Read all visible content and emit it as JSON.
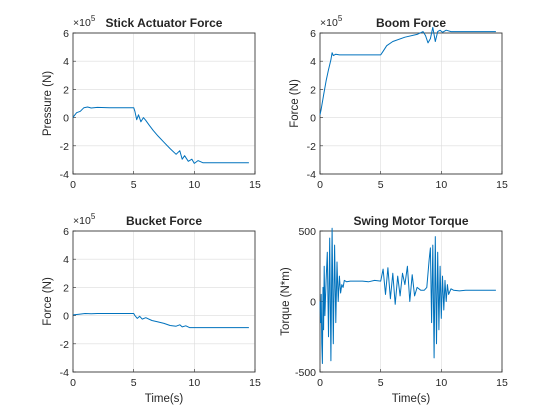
{
  "chart_data": [
    {
      "type": "line",
      "title": "Stick Actuator Force",
      "xlabel": "",
      "ylabel": "Pressure (N)",
      "exponent_base": "×10",
      "exponent_power": "5",
      "xlim": [
        0,
        15
      ],
      "ylim": [
        -4,
        6
      ],
      "xticks": [
        "0",
        "5",
        "10",
        "15"
      ],
      "yticks": [
        "-4",
        "-2",
        "0",
        "2",
        "4",
        "6"
      ],
      "grid": true,
      "line_color": "#0072BD",
      "series": [
        {
          "x": [
            0,
            0.3,
            0.6,
            0.9,
            1.2,
            1.5,
            2,
            3,
            4,
            5,
            5.1,
            5.25,
            5.4,
            5.6,
            5.8,
            6,
            6.3,
            6.6,
            7,
            7.5,
            8,
            8.5,
            8.8,
            9,
            9.2,
            9.5,
            9.8,
            10,
            10.3,
            10.7,
            11,
            12,
            13,
            14,
            14.5
          ],
          "y": [
            0.02,
            0.35,
            0.45,
            0.7,
            0.75,
            0.68,
            0.72,
            0.7,
            0.7,
            0.7,
            0.45,
            -0.15,
            0.2,
            -0.3,
            0.0,
            -0.2,
            -0.55,
            -0.9,
            -1.3,
            -1.75,
            -2.2,
            -2.6,
            -2.35,
            -2.95,
            -2.7,
            -3.1,
            -2.95,
            -3.25,
            -3.05,
            -3.2,
            -3.2,
            -3.2,
            -3.2,
            -3.2,
            -3.2
          ]
        }
      ]
    },
    {
      "type": "line",
      "title": "Boom Force",
      "xlabel": "",
      "ylabel": "Force (N)",
      "exponent_base": "×10",
      "exponent_power": "5",
      "xlim": [
        0,
        15
      ],
      "ylim": [
        -4,
        6
      ],
      "xticks": [
        "0",
        "5",
        "10",
        "15"
      ],
      "yticks": [
        "-4",
        "-2",
        "0",
        "2",
        "4",
        "6"
      ],
      "grid": true,
      "line_color": "#0072BD",
      "series": [
        {
          "x": [
            0,
            0.1,
            0.3,
            0.5,
            0.7,
            0.9,
            1.0,
            1.1,
            1.3,
            1.6,
            2,
            3,
            4,
            5,
            5.2,
            5.5,
            6,
            7,
            8,
            8.5,
            8.7,
            8.9,
            9.1,
            9.3,
            9.5,
            9.7,
            9.9,
            10.1,
            10.4,
            10.8,
            11,
            12,
            13,
            14,
            14.5
          ],
          "y": [
            0.2,
            0.6,
            1.6,
            2.6,
            3.4,
            4.1,
            4.6,
            4.4,
            4.5,
            4.45,
            4.45,
            4.45,
            4.45,
            4.45,
            4.7,
            5.1,
            5.4,
            5.7,
            5.9,
            6.1,
            5.8,
            5.3,
            5.6,
            6.4,
            5.4,
            6.1,
            6.2,
            6.05,
            6.2,
            6.1,
            6.1,
            6.1,
            6.1,
            6.1,
            6.1
          ]
        }
      ]
    },
    {
      "type": "line",
      "title": "Bucket Force",
      "xlabel": "Time(s)",
      "ylabel": "Force (N)",
      "exponent_base": "×10",
      "exponent_power": "5",
      "xlim": [
        0,
        15
      ],
      "ylim": [
        -4,
        6
      ],
      "xticks": [
        "0",
        "5",
        "10",
        "15"
      ],
      "yticks": [
        "-4",
        "-2",
        "0",
        "2",
        "4",
        "6"
      ],
      "grid": true,
      "line_color": "#0072BD",
      "series": [
        {
          "x": [
            0,
            0.5,
            1,
            1.5,
            2,
            3,
            4,
            5,
            5.1,
            5.3,
            5.5,
            5.7,
            6,
            6.5,
            7,
            7.5,
            8,
            8.5,
            8.8,
            9,
            9.3,
            9.6,
            10,
            10.5,
            11,
            12,
            13,
            14,
            14.5
          ],
          "y": [
            0.05,
            0.1,
            0.15,
            0.13,
            0.15,
            0.15,
            0.15,
            0.15,
            0.0,
            -0.2,
            -0.05,
            -0.25,
            -0.15,
            -0.35,
            -0.45,
            -0.55,
            -0.7,
            -0.75,
            -0.65,
            -0.8,
            -0.72,
            -0.85,
            -0.85,
            -0.85,
            -0.85,
            -0.85,
            -0.85,
            -0.85,
            -0.85
          ]
        }
      ]
    },
    {
      "type": "line",
      "title": "Swing Motor Torque",
      "xlabel": "Time(s)",
      "ylabel": "Torque (N*m)",
      "xlim": [
        0,
        15
      ],
      "ylim": [
        -500,
        500
      ],
      "xticks": [
        "0",
        "5",
        "10",
        "15"
      ],
      "yticks": [
        "-500",
        "0",
        "500"
      ],
      "grid": true,
      "line_color": "#0072BD",
      "series": [
        {
          "x": [
            0,
            0.05,
            0.1,
            0.15,
            0.2,
            0.25,
            0.3,
            0.35,
            0.4,
            0.5,
            0.6,
            0.7,
            0.8,
            0.9,
            1.0,
            1.1,
            1.2,
            1.3,
            1.4,
            1.5,
            1.6,
            1.7,
            1.8,
            1.9,
            2.0,
            2.2,
            2.5,
            3,
            3.5,
            4,
            4.5,
            5,
            5.2,
            5.4,
            5.6,
            5.8,
            6.0,
            6.2,
            6.4,
            6.6,
            6.8,
            7.0,
            7.2,
            7.4,
            7.6,
            7.8,
            8.0,
            8.3,
            8.6,
            8.8,
            9.0,
            9.1,
            9.2,
            9.3,
            9.4,
            9.5,
            9.6,
            9.7,
            9.8,
            9.9,
            10.0,
            10.1,
            10.2,
            10.3,
            10.4,
            10.5,
            10.6,
            10.8,
            11.0,
            11.5,
            12,
            13,
            14,
            14.5
          ],
          "y": [
            0,
            -150,
            50,
            -300,
            -440,
            100,
            -200,
            250,
            -100,
            150,
            350,
            -250,
            450,
            -420,
            520,
            -300,
            400,
            -150,
            280,
            0,
            180,
            60,
            120,
            100,
            150,
            140,
            145,
            145,
            145,
            140,
            150,
            145,
            230,
            50,
            240,
            20,
            200,
            -20,
            180,
            40,
            200,
            120,
            250,
            0,
            190,
            40,
            100,
            80,
            80,
            100,
            300,
            380,
            -150,
            400,
            -400,
            460,
            -300,
            350,
            -200,
            250,
            -120,
            180,
            -60,
            150,
            0,
            120,
            50,
            90,
            80,
            75,
            80,
            80,
            80,
            80
          ]
        }
      ]
    }
  ]
}
